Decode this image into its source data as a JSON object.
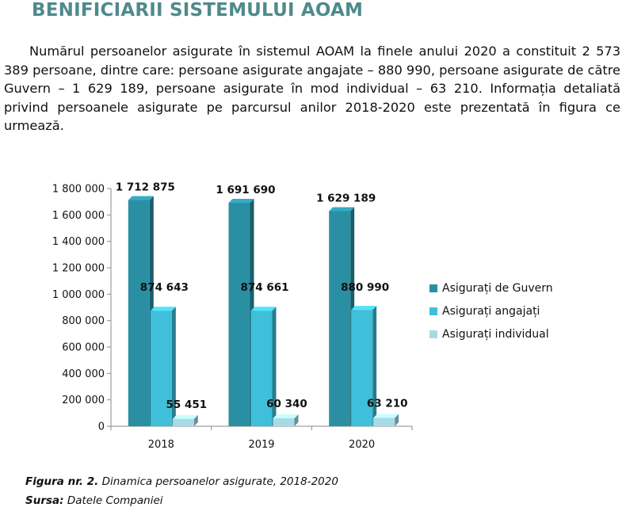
{
  "section_title": "BENIFICIARII SISTEMULUI AOAM",
  "paragraph": "Numărul persoanelor asigurate în sistemul AOAM la finele anului 2020 a constituit 2 573 389 persoane, dintre care: persoane asigurate angajate – 880 990, persoane asigurate de către Guvern – 1 629 189, persoane asigurate în mod individual – 63 210. Informația detaliată privind persoanele asigurate pe parcursul anilor 2018-2020 este prezentată în figura ce urmează.",
  "caption": {
    "label": "Figura nr. 2.",
    "text": "Dinamica persoanelor asigurate, 2018-2020",
    "source_label": "Sursa:",
    "source_text": "Datele Companiei"
  },
  "chart_data": {
    "type": "bar",
    "categories": [
      "2018",
      "2019",
      "2020"
    ],
    "series": [
      {
        "name": "Asigurați de Guvern",
        "values": [
          1712875,
          1691690,
          1629189
        ],
        "labels": [
          "1 712 875",
          "1 691 690",
          "1 629 189"
        ],
        "color": "#2b8fa3"
      },
      {
        "name": "Asigurați angajați",
        "values": [
          874643,
          874661,
          880990
        ],
        "labels": [
          "874 643",
          "874 661",
          "880 990"
        ],
        "color": "#3fbfd9"
      },
      {
        "name": "Asigurați individual",
        "values": [
          55451,
          60340,
          63210
        ],
        "labels": [
          "55 451",
          "60 340",
          "63 210"
        ],
        "color": "#a6dbe6"
      }
    ],
    "ylim": [
      0,
      1800000
    ],
    "yticks": [
      "0",
      "200 000",
      "400 000",
      "600 000",
      "800 000",
      "1 000 000",
      "1 200 000",
      "1 400 000",
      "1 600 000",
      "1 800 000"
    ],
    "legend_position": "right",
    "grid": false
  }
}
